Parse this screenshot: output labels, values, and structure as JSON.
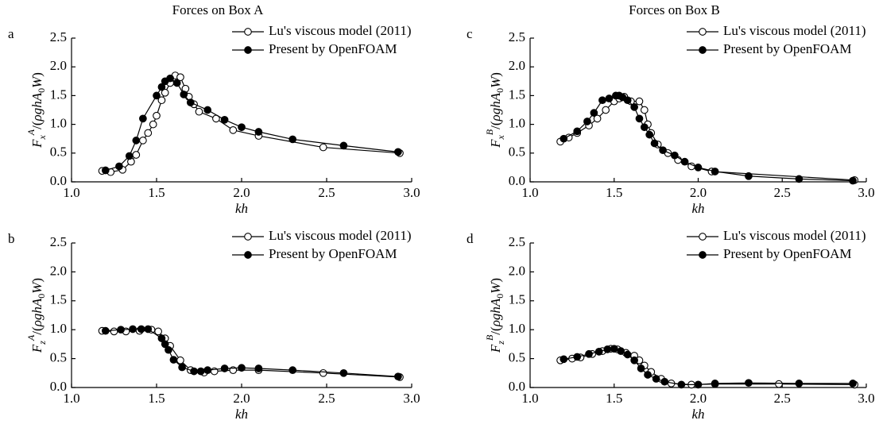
{
  "chart_data": [
    {
      "type": "scatter-line",
      "title": "Forces on Box A",
      "panel_label": "a",
      "xlabel": "kh",
      "ylabel_parts": [
        "F",
        "x",
        "A",
        "/(",
        "ρghA",
        "0",
        "W",
        ")"
      ],
      "xlim": [
        1,
        3
      ],
      "ylim": [
        0,
        2.5
      ],
      "xticks": [
        {
          "value": 1,
          "label": "1.0"
        },
        {
          "value": 1.5,
          "label": "1.5"
        },
        {
          "value": 2,
          "label": "2.0"
        },
        {
          "value": 2.5,
          "label": "2.5"
        },
        {
          "value": 3,
          "label": "3.0"
        }
      ],
      "yticks": [
        {
          "value": 0,
          "label": "0.0"
        },
        {
          "value": 0.5,
          "label": "0.5"
        },
        {
          "value": 1,
          "label": "1.0"
        },
        {
          "value": 1.5,
          "label": "1.5"
        },
        {
          "value": 2,
          "label": "2.0"
        },
        {
          "value": 2.5,
          "label": "2.5"
        }
      ],
      "series": [
        {
          "name": "Lu's viscous model (2011)",
          "color": "#000000",
          "marker_fill": "#ffffff",
          "x": [
            1.18,
            1.23,
            1.3,
            1.35,
            1.38,
            1.42,
            1.45,
            1.48,
            1.5,
            1.53,
            1.55,
            1.58,
            1.61,
            1.64,
            1.67,
            1.69,
            1.72,
            1.75,
            1.85,
            1.95,
            2.1,
            2.48,
            2.93
          ],
          "values": [
            0.19,
            0.17,
            0.21,
            0.35,
            0.47,
            0.72,
            0.85,
            1.0,
            1.15,
            1.42,
            1.55,
            1.72,
            1.85,
            1.82,
            1.62,
            1.48,
            1.35,
            1.22,
            1.1,
            0.9,
            0.8,
            0.6,
            0.5
          ]
        },
        {
          "name": "Present by OpenFOAM",
          "color": "#000000",
          "marker_fill": "#000000",
          "x": [
            1.2,
            1.28,
            1.34,
            1.38,
            1.42,
            1.5,
            1.53,
            1.55,
            1.58,
            1.62,
            1.66,
            1.7,
            1.8,
            1.9,
            2.0,
            2.1,
            2.3,
            2.6,
            2.92
          ],
          "values": [
            0.2,
            0.27,
            0.45,
            0.72,
            1.1,
            1.5,
            1.65,
            1.75,
            1.8,
            1.72,
            1.52,
            1.38,
            1.25,
            1.08,
            0.95,
            0.87,
            0.74,
            0.63,
            0.52
          ]
        }
      ]
    },
    {
      "type": "scatter-line",
      "panel_label": "b",
      "xlabel": "kh",
      "ylabel_parts": [
        "F",
        "z",
        "A",
        "/(",
        "ρghA",
        "0",
        "W",
        ")"
      ],
      "xlim": [
        1,
        3
      ],
      "ylim": [
        0,
        2.5
      ],
      "xticks": [
        {
          "value": 1,
          "label": "1.0"
        },
        {
          "value": 1.5,
          "label": "1.5"
        },
        {
          "value": 2,
          "label": "2.0"
        },
        {
          "value": 2.5,
          "label": "2.5"
        },
        {
          "value": 3,
          "label": "3.0"
        }
      ],
      "yticks": [
        {
          "value": 0,
          "label": "0.0"
        },
        {
          "value": 0.5,
          "label": "0.5"
        },
        {
          "value": 1,
          "label": "1.0"
        },
        {
          "value": 1.5,
          "label": "1.5"
        },
        {
          "value": 2,
          "label": "2.0"
        },
        {
          "value": 2.5,
          "label": "2.5"
        }
      ],
      "series": [
        {
          "name": "Lu's viscous model (2011)",
          "color": "#000000",
          "marker_fill": "#ffffff",
          "x": [
            1.18,
            1.25,
            1.32,
            1.4,
            1.47,
            1.51,
            1.55,
            1.58,
            1.64,
            1.7,
            1.78,
            1.84,
            1.95,
            2.1,
            2.48,
            2.93
          ],
          "values": [
            0.98,
            0.97,
            0.97,
            0.98,
            1.0,
            0.97,
            0.85,
            0.72,
            0.47,
            0.3,
            0.26,
            0.28,
            0.3,
            0.3,
            0.25,
            0.18
          ]
        },
        {
          "name": "Present by OpenFOAM",
          "color": "#000000",
          "marker_fill": "#000000",
          "x": [
            1.2,
            1.29,
            1.36,
            1.41,
            1.45,
            1.53,
            1.55,
            1.57,
            1.6,
            1.65,
            1.72,
            1.76,
            1.8,
            1.9,
            2.0,
            2.1,
            2.3,
            2.6,
            2.92
          ],
          "values": [
            0.98,
            1.0,
            1.01,
            1.01,
            1.01,
            0.85,
            0.75,
            0.65,
            0.48,
            0.35,
            0.28,
            0.28,
            0.3,
            0.33,
            0.34,
            0.33,
            0.3,
            0.25,
            0.19
          ]
        }
      ]
    },
    {
      "type": "scatter-line",
      "title": "Forces on Box B",
      "panel_label": "c",
      "xlabel": "kh",
      "ylabel_parts": [
        "F",
        "x",
        "B",
        "/(",
        "ρghA",
        "0",
        "W",
        ")"
      ],
      "xlim": [
        1,
        3
      ],
      "ylim": [
        0,
        2.5
      ],
      "xticks": [
        {
          "value": 1,
          "label": "1.0"
        },
        {
          "value": 1.5,
          "label": "1.5"
        },
        {
          "value": 2,
          "label": "2.0"
        },
        {
          "value": 2.5,
          "label": "2.5"
        },
        {
          "value": 3,
          "label": "3.0"
        }
      ],
      "yticks": [
        {
          "value": 0,
          "label": "0.0"
        },
        {
          "value": 0.5,
          "label": "0.5"
        },
        {
          "value": 1,
          "label": "1.0"
        },
        {
          "value": 1.5,
          "label": "1.5"
        },
        {
          "value": 2,
          "label": "2.0"
        },
        {
          "value": 2.5,
          "label": "2.5"
        }
      ],
      "series": [
        {
          "name": "Lu's viscous model (2011)",
          "color": "#000000",
          "marker_fill": "#ffffff",
          "x": [
            1.18,
            1.23,
            1.28,
            1.35,
            1.4,
            1.45,
            1.5,
            1.53,
            1.56,
            1.6,
            1.65,
            1.68,
            1.7,
            1.72,
            1.76,
            1.82,
            1.88,
            1.96,
            2.08,
            2.93
          ],
          "values": [
            0.7,
            0.77,
            0.85,
            0.98,
            1.1,
            1.25,
            1.4,
            1.45,
            1.48,
            1.4,
            1.4,
            1.25,
            1.0,
            0.85,
            0.65,
            0.5,
            0.38,
            0.27,
            0.18,
            0.03
          ]
        },
        {
          "name": "Present by OpenFOAM",
          "color": "#000000",
          "marker_fill": "#000000",
          "x": [
            1.2,
            1.28,
            1.34,
            1.38,
            1.43,
            1.47,
            1.51,
            1.53,
            1.55,
            1.58,
            1.62,
            1.65,
            1.68,
            1.71,
            1.74,
            1.79,
            1.86,
            1.92,
            2.0,
            2.1,
            2.3,
            2.6,
            2.92
          ],
          "values": [
            0.75,
            0.88,
            1.05,
            1.2,
            1.42,
            1.45,
            1.5,
            1.5,
            1.47,
            1.42,
            1.3,
            1.1,
            0.95,
            0.82,
            0.67,
            0.55,
            0.46,
            0.35,
            0.25,
            0.18,
            0.1,
            0.05,
            0.02
          ]
        }
      ]
    },
    {
      "type": "scatter-line",
      "panel_label": "d",
      "xlabel": "kh",
      "ylabel_parts": [
        "F",
        "z",
        "B",
        "/(",
        "ρghA",
        "0",
        "W",
        ")"
      ],
      "xlim": [
        1,
        3
      ],
      "ylim": [
        0,
        2.5
      ],
      "xticks": [
        {
          "value": 1,
          "label": "1.0"
        },
        {
          "value": 1.5,
          "label": "1.5"
        },
        {
          "value": 2,
          "label": "2.0"
        },
        {
          "value": 2.5,
          "label": "2.5"
        },
        {
          "value": 3,
          "label": "3.0"
        }
      ],
      "yticks": [
        {
          "value": 0,
          "label": "0.0"
        },
        {
          "value": 0.5,
          "label": "0.5"
        },
        {
          "value": 1,
          "label": "1.0"
        },
        {
          "value": 1.5,
          "label": "1.5"
        },
        {
          "value": 2,
          "label": "2.0"
        },
        {
          "value": 2.5,
          "label": "2.5"
        }
      ],
      "series": [
        {
          "name": "Lu's viscous model (2011)",
          "color": "#000000",
          "marker_fill": "#ffffff",
          "x": [
            1.18,
            1.25,
            1.3,
            1.37,
            1.43,
            1.48,
            1.52,
            1.57,
            1.62,
            1.65,
            1.68,
            1.72,
            1.78,
            1.84,
            1.96,
            2.1,
            2.48,
            2.93
          ],
          "values": [
            0.47,
            0.5,
            0.52,
            0.58,
            0.63,
            0.67,
            0.66,
            0.6,
            0.55,
            0.47,
            0.38,
            0.27,
            0.15,
            0.07,
            0.05,
            0.06,
            0.06,
            0.05
          ]
        },
        {
          "name": "Present by OpenFOAM",
          "color": "#000000",
          "marker_fill": "#000000",
          "x": [
            1.2,
            1.28,
            1.35,
            1.41,
            1.46,
            1.5,
            1.54,
            1.58,
            1.62,
            1.66,
            1.7,
            1.75,
            1.8,
            1.9,
            2.0,
            2.1,
            2.3,
            2.6,
            2.92
          ],
          "values": [
            0.49,
            0.53,
            0.58,
            0.62,
            0.66,
            0.67,
            0.63,
            0.57,
            0.47,
            0.33,
            0.22,
            0.15,
            0.1,
            0.05,
            0.05,
            0.07,
            0.08,
            0.07,
            0.07
          ]
        }
      ]
    }
  ]
}
